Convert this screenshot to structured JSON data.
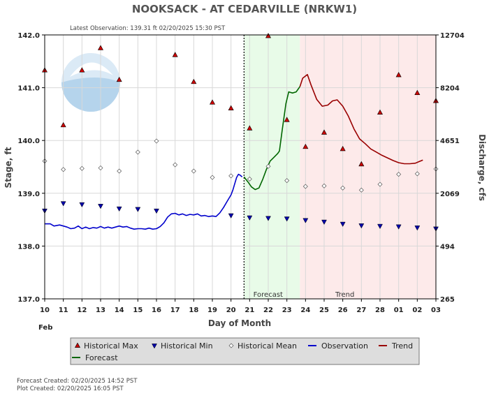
{
  "chart_data": {
    "type": "line",
    "title": "NOOKSACK - AT CEDARVILLE  (NRKW1)",
    "subtitle": "Latest Observation: 139.31 ft 02/20/2025 15:30 PST",
    "xlabel": "Day of Month",
    "month_label": "Feb",
    "ylabel_left": "Stage, ft",
    "ylabel_right": "Discharge, cfs",
    "x_range": [
      10,
      31
    ],
    "y_range": [
      137.0,
      142.0
    ],
    "x_tick_labels": [
      "10",
      "11",
      "12",
      "13",
      "14",
      "15",
      "16",
      "17",
      "18",
      "19",
      "20",
      "21",
      "22",
      "23",
      "24",
      "25",
      "26",
      "27",
      "28",
      "01",
      "02",
      "03"
    ],
    "y_ticks": [
      137.0,
      138.0,
      139.0,
      140.0,
      141.0,
      142.0
    ],
    "y_tick_labels": [
      "137.0",
      "138.0",
      "139.0",
      "140.0",
      "141.0",
      "142.0"
    ],
    "right_ticks": [
      {
        "stage": 137.0,
        "label": "265"
      },
      {
        "stage": 138.0,
        "label": "494"
      },
      {
        "stage": 139.0,
        "label": "2069"
      },
      {
        "stage": 140.0,
        "label": "4651"
      },
      {
        "stage": 141.0,
        "label": "8204"
      },
      {
        "stage": 142.0,
        "label": "12704"
      }
    ],
    "forecast_start": 20.7,
    "forecast_end": 23.7,
    "zone_labels": {
      "forecast": "Forecast",
      "trend": "Trend"
    },
    "zone_label_x": {
      "forecast": 21.2,
      "trend": 25.6
    },
    "colors": {
      "observation": "#0000cc",
      "forecast": "#006600",
      "trend": "#990000",
      "hist_max": "#cc0000",
      "hist_min": "#0000aa",
      "hist_mean": "#ffffff",
      "forecast_bg": "#e8fbe8",
      "trend_bg": "#fdeaea"
    },
    "series": [
      {
        "name": "Observation",
        "points": [
          [
            10.0,
            138.42
          ],
          [
            10.3,
            138.42
          ],
          [
            10.5,
            138.38
          ],
          [
            10.8,
            138.4
          ],
          [
            11.0,
            138.38
          ],
          [
            11.2,
            138.36
          ],
          [
            11.4,
            138.33
          ],
          [
            11.6,
            138.34
          ],
          [
            11.8,
            138.38
          ],
          [
            12.0,
            138.33
          ],
          [
            12.2,
            138.36
          ],
          [
            12.4,
            138.33
          ],
          [
            12.6,
            138.35
          ],
          [
            12.8,
            138.34
          ],
          [
            13.0,
            138.37
          ],
          [
            13.2,
            138.34
          ],
          [
            13.4,
            138.36
          ],
          [
            13.6,
            138.34
          ],
          [
            13.8,
            138.36
          ],
          [
            14.0,
            138.38
          ],
          [
            14.2,
            138.36
          ],
          [
            14.4,
            138.37
          ],
          [
            14.6,
            138.34
          ],
          [
            14.8,
            138.32
          ],
          [
            15.0,
            138.33
          ],
          [
            15.2,
            138.33
          ],
          [
            15.4,
            138.32
          ],
          [
            15.6,
            138.34
          ],
          [
            15.8,
            138.32
          ],
          [
            16.0,
            138.33
          ],
          [
            16.2,
            138.37
          ],
          [
            16.4,
            138.44
          ],
          [
            16.6,
            138.55
          ],
          [
            16.8,
            138.61
          ],
          [
            17.0,
            138.62
          ],
          [
            17.2,
            138.59
          ],
          [
            17.4,
            138.61
          ],
          [
            17.6,
            138.58
          ],
          [
            17.8,
            138.6
          ],
          [
            18.0,
            138.59
          ],
          [
            18.2,
            138.61
          ],
          [
            18.4,
            138.57
          ],
          [
            18.6,
            138.58
          ],
          [
            18.8,
            138.56
          ],
          [
            19.0,
            138.57
          ],
          [
            19.2,
            138.56
          ],
          [
            19.4,
            138.63
          ],
          [
            19.6,
            138.73
          ],
          [
            19.8,
            138.85
          ],
          [
            20.0,
            138.97
          ],
          [
            20.1,
            139.06
          ],
          [
            20.2,
            139.18
          ],
          [
            20.3,
            139.3
          ],
          [
            20.4,
            139.36
          ],
          [
            20.5,
            139.34
          ],
          [
            20.6,
            139.31
          ]
        ]
      },
      {
        "name": "Forecast",
        "points": [
          [
            20.7,
            139.31
          ],
          [
            20.9,
            139.22
          ],
          [
            21.1,
            139.12
          ],
          [
            21.3,
            139.07
          ],
          [
            21.5,
            139.1
          ],
          [
            21.7,
            139.26
          ],
          [
            21.9,
            139.45
          ],
          [
            22.1,
            139.61
          ],
          [
            22.3,
            139.68
          ],
          [
            22.5,
            139.75
          ],
          [
            22.6,
            139.8
          ],
          [
            22.75,
            140.2
          ],
          [
            22.95,
            140.7
          ],
          [
            23.1,
            140.92
          ],
          [
            23.3,
            140.9
          ],
          [
            23.5,
            140.92
          ],
          [
            23.7,
            141.02
          ]
        ]
      },
      {
        "name": "Trend",
        "points": [
          [
            23.7,
            141.02
          ],
          [
            23.85,
            141.18
          ],
          [
            24.1,
            141.25
          ],
          [
            24.3,
            141.05
          ],
          [
            24.6,
            140.78
          ],
          [
            24.9,
            140.65
          ],
          [
            25.2,
            140.67
          ],
          [
            25.45,
            140.75
          ],
          [
            25.7,
            140.77
          ],
          [
            26.0,
            140.65
          ],
          [
            26.3,
            140.46
          ],
          [
            26.6,
            140.22
          ],
          [
            26.9,
            140.03
          ],
          [
            27.2,
            139.94
          ],
          [
            27.5,
            139.84
          ],
          [
            27.8,
            139.78
          ],
          [
            28.1,
            139.72
          ],
          [
            28.4,
            139.67
          ],
          [
            28.7,
            139.62
          ],
          [
            29.0,
            139.58
          ],
          [
            29.3,
            139.56
          ],
          [
            29.6,
            139.56
          ],
          [
            29.9,
            139.57
          ],
          [
            30.1,
            139.6
          ],
          [
            30.3,
            139.63
          ]
        ]
      }
    ],
    "historical_max": [
      [
        10,
        141.33
      ],
      [
        11,
        140.29
      ],
      [
        12,
        141.33
      ],
      [
        13,
        141.75
      ],
      [
        14,
        141.15
      ],
      [
        17,
        141.62
      ],
      [
        18,
        141.11
      ],
      [
        19,
        140.72
      ],
      [
        20,
        140.61
      ],
      [
        21,
        140.23
      ],
      [
        22,
        141.98
      ],
      [
        23,
        140.39
      ],
      [
        24,
        139.88
      ],
      [
        25,
        140.15
      ],
      [
        26,
        139.84
      ],
      [
        27,
        139.55
      ],
      [
        28,
        140.53
      ],
      [
        29,
        141.24
      ],
      [
        30,
        140.9
      ],
      [
        31,
        140.75
      ]
    ],
    "historical_min": [
      [
        10,
        138.67
      ],
      [
        11,
        138.81
      ],
      [
        12,
        138.79
      ],
      [
        13,
        138.76
      ],
      [
        14,
        138.71
      ],
      [
        15,
        138.7
      ],
      [
        16,
        138.67
      ],
      [
        20,
        138.58
      ],
      [
        21,
        138.54
      ],
      [
        22,
        138.53
      ],
      [
        23,
        138.52
      ],
      [
        24,
        138.49
      ],
      [
        25,
        138.46
      ],
      [
        26,
        138.42
      ],
      [
        27,
        138.39
      ],
      [
        28,
        138.38
      ],
      [
        29,
        138.37
      ],
      [
        30,
        138.35
      ],
      [
        31,
        138.33
      ]
    ],
    "historical_mean": [
      [
        10,
        139.61
      ],
      [
        11,
        139.45
      ],
      [
        12,
        139.47
      ],
      [
        13,
        139.48
      ],
      [
        14,
        139.42
      ],
      [
        15,
        139.78
      ],
      [
        16,
        139.99
      ],
      [
        17,
        139.54
      ],
      [
        18,
        139.42
      ],
      [
        19,
        139.3
      ],
      [
        20,
        139.33
      ],
      [
        21,
        139.27
      ],
      [
        22,
        139.51
      ],
      [
        23,
        139.24
      ],
      [
        24,
        139.13
      ],
      [
        25,
        139.14
      ],
      [
        26,
        139.1
      ],
      [
        27,
        139.06
      ],
      [
        28,
        139.17
      ],
      [
        29,
        139.36
      ],
      [
        30,
        139.37
      ],
      [
        31,
        139.46
      ]
    ],
    "legend": [
      {
        "label": "Historical Max",
        "symbol": "tri-up",
        "color": "#cc0000"
      },
      {
        "label": "Historical Min",
        "symbol": "tri-down",
        "color": "#0000aa"
      },
      {
        "label": "Historical Mean",
        "symbol": "diamond",
        "color": "#ffffff"
      },
      {
        "label": "Observation",
        "symbol": "line",
        "color": "#0000cc"
      },
      {
        "label": "Trend",
        "symbol": "line",
        "color": "#990000"
      },
      {
        "label": "Forecast",
        "symbol": "line",
        "color": "#006600"
      }
    ],
    "footer": [
      "Forecast Created: 02/20/2025 14:52 PST",
      "Plot Created: 02/20/2025 16:05 PST"
    ],
    "grid": true,
    "legend_placement": "bottom"
  }
}
